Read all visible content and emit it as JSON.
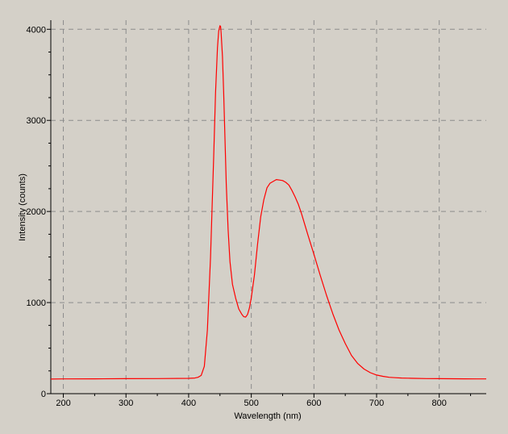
{
  "chart_data": {
    "type": "line",
    "xlabel": "Wavelength (nm)",
    "ylabel": "Intensity (counts)",
    "xlim": [
      180,
      875
    ],
    "ylim": [
      0,
      4100
    ],
    "x_ticks": [
      200,
      300,
      400,
      500,
      600,
      700,
      800
    ],
    "x_tick_labels": [
      "200",
      "300",
      "400",
      "500",
      "600",
      "700",
      "800"
    ],
    "y_ticks": [
      0,
      1000,
      2000,
      3000,
      4000
    ],
    "y_tick_labels": [
      "0",
      "1000",
      "2000",
      "3000",
      "4000"
    ],
    "grid": true,
    "legend": "none",
    "colors": {
      "background": "#d4d0c8",
      "line": "#ff0000",
      "grid": "#8c8c8c",
      "axis": "#000000"
    },
    "series": [
      {
        "x": [
          180,
          200,
          250,
          300,
          350,
          400,
          410,
          415,
          420,
          425,
          430,
          435,
          440,
          443,
          446,
          448,
          450,
          451,
          452,
          454,
          456,
          458,
          460,
          463,
          466,
          470,
          475,
          480,
          485,
          488,
          491,
          494,
          497,
          500,
          505,
          510,
          515,
          520,
          525,
          530,
          535,
          540,
          545,
          550,
          555,
          560,
          565,
          570,
          575,
          580,
          590,
          600,
          610,
          620,
          630,
          640,
          650,
          660,
          670,
          680,
          690,
          700,
          710,
          720,
          730,
          740,
          750,
          760,
          780,
          800,
          820,
          840,
          860,
          875
        ],
        "y": [
          160,
          162,
          163,
          165,
          166,
          168,
          172,
          180,
          200,
          300,
          700,
          1500,
          2600,
          3300,
          3800,
          3980,
          4040,
          4030,
          3950,
          3700,
          3300,
          2800,
          2300,
          1800,
          1450,
          1200,
          1050,
          930,
          870,
          845,
          840,
          870,
          940,
          1050,
          1300,
          1640,
          1940,
          2130,
          2260,
          2310,
          2330,
          2350,
          2345,
          2340,
          2320,
          2290,
          2230,
          2160,
          2080,
          1980,
          1750,
          1530,
          1300,
          1080,
          880,
          700,
          550,
          420,
          330,
          270,
          230,
          205,
          190,
          180,
          175,
          172,
          170,
          168,
          166,
          165,
          164,
          163,
          162,
          162
        ]
      }
    ]
  }
}
